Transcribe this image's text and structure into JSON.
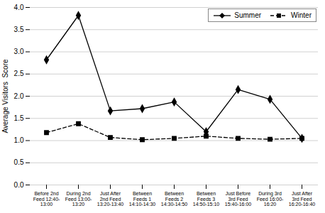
{
  "chart_data": {
    "type": "line",
    "categories": [
      "Before 2nd\nFeed 12:40-\n13:00",
      "During 2nd\nFeed 13:00-\n13:20",
      "Just After\n2nd Feed\n13:20-13:40",
      "Between\nFeeds 1\n14:10-14:30",
      "Between\nFeeds 2\n14:30-14:50",
      "Between\nFeeds 3\n14:50-15:10",
      "Just Before\n3rd Feed\n15:40-16:00",
      "During 3rd\nFeed 16:00-\n16:20",
      "Just After\n3rd Feed\n16:20-16:40"
    ],
    "series": [
      {
        "name": "Summer",
        "color": "#000000",
        "line_style": "solid",
        "marker": "diamond",
        "values": [
          2.82,
          3.82,
          1.67,
          1.72,
          1.87,
          1.2,
          2.15,
          1.93,
          1.05
        ]
      },
      {
        "name": "Winter",
        "color": "#000000",
        "line_style": "dashed",
        "marker": "square",
        "values": [
          1.18,
          1.38,
          1.07,
          1.02,
          1.05,
          1.1,
          1.05,
          1.03,
          1.05
        ]
      }
    ],
    "ylabel": "Average Visitors  Score",
    "ylim": [
      0.0,
      4.0
    ],
    "yticks": [
      {
        "value": 0,
        "label": "0.0"
      },
      0.5,
      {
        "value": 1,
        "label": "1.0"
      },
      1.5,
      {
        "value": 2,
        "label": "2.0"
      },
      2.5,
      {
        "value": 3,
        "label": "3.0"
      },
      3.5,
      {
        "value": 4,
        "label": "4.0"
      }
    ],
    "grid": true,
    "legend": "upper right"
  }
}
